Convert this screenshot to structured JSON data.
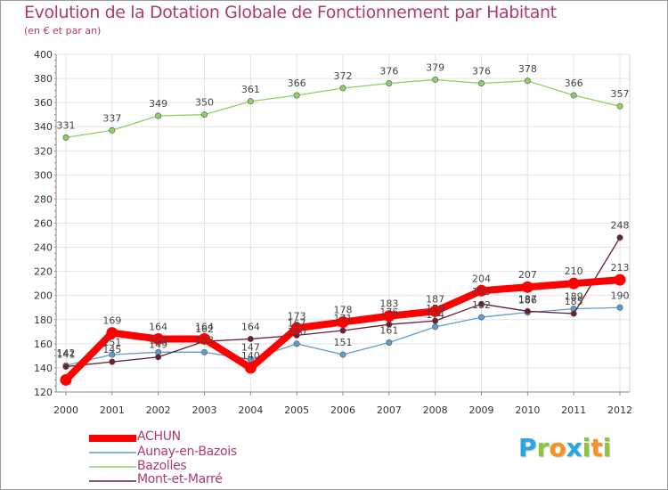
{
  "chart_data": {
    "type": "line",
    "title": "Evolution de la Dotation Globale de Fonctionnement par Habitant",
    "subtitle": "(en € et par an)",
    "xlabel": "",
    "ylabel": "",
    "ylim": [
      120,
      400
    ],
    "yticks": [
      120,
      140,
      160,
      180,
      200,
      220,
      240,
      260,
      280,
      300,
      320,
      340,
      360,
      380,
      400
    ],
    "x": [
      "2000",
      "2001",
      "2002",
      "2003",
      "2004",
      "2005",
      "2006",
      "2007",
      "2008",
      "2009",
      "2010",
      "2011",
      "2012"
    ],
    "grid": true,
    "legend": "bottom-left",
    "series": [
      {
        "name": "Bazolles",
        "color": "#8fcf63",
        "values": [
          331,
          337,
          349,
          350,
          361,
          366,
          372,
          376,
          379,
          376,
          378,
          366,
          357
        ]
      },
      {
        "name": "Aunay-en-Bazois",
        "color": "#5a9ed0",
        "values": [
          142,
          151,
          153,
          153,
          147,
          160,
          151,
          161,
          174,
          182,
          186,
          189,
          190
        ]
      },
      {
        "name": "Mont-et-Marré",
        "color": "#6b1e2e",
        "values": [
          141,
          145,
          149,
          162,
          164,
          167,
          171,
          176,
          179,
          193,
          187,
          185,
          248
        ]
      },
      {
        "name": "ACHUN",
        "color": "#ff0000",
        "values": [
          130,
          169,
          164,
          164,
          140,
          173,
          178,
          183,
          187,
          204,
          207,
          210,
          213
        ]
      }
    ],
    "labels": [
      {
        "text": "331",
        "x": "2000",
        "y": 331
      },
      {
        "text": "337",
        "x": "2001",
        "y": 337
      },
      {
        "text": "349",
        "x": "2002",
        "y": 349
      },
      {
        "text": "350",
        "x": "2003",
        "y": 350
      },
      {
        "text": "361",
        "x": "2004",
        "y": 361
      },
      {
        "text": "366",
        "x": "2005",
        "y": 366
      },
      {
        "text": "372",
        "x": "2006",
        "y": 372
      },
      {
        "text": "376",
        "x": "2007",
        "y": 376
      },
      {
        "text": "379",
        "x": "2008",
        "y": 379
      },
      {
        "text": "376",
        "x": "2009",
        "y": 376
      },
      {
        "text": "378",
        "x": "2010",
        "y": 378
      },
      {
        "text": "366",
        "x": "2011",
        "y": 366
      },
      {
        "text": "357",
        "x": "2012",
        "y": 357
      },
      {
        "text": "142",
        "x": "2000",
        "y": 142
      },
      {
        "text": "141",
        "x": "2000",
        "y": 141
      },
      {
        "text": "169",
        "x": "2001",
        "y": 169
      },
      {
        "text": "151",
        "x": "2001",
        "y": 151
      },
      {
        "text": "145",
        "x": "2001",
        "y": 145
      },
      {
        "text": "164",
        "x": "2002",
        "y": 164
      },
      {
        "text": "153",
        "x": "2002",
        "y": 153
      },
      {
        "text": "149",
        "x": "2002",
        "y": 149
      },
      {
        "text": "164",
        "x": "2003",
        "y": 164
      },
      {
        "text": "162",
        "x": "2003",
        "y": 162
      },
      {
        "text": "153",
        "x": "2003",
        "y": 153
      },
      {
        "text": "164",
        "x": "2004",
        "y": 164
      },
      {
        "text": "147",
        "x": "2004",
        "y": 147
      },
      {
        "text": "140",
        "x": "2004",
        "y": 140
      },
      {
        "text": "173",
        "x": "2005",
        "y": 173
      },
      {
        "text": "167",
        "x": "2005",
        "y": 167
      },
      {
        "text": "160",
        "x": "2005",
        "y": 160
      },
      {
        "text": "178",
        "x": "2006",
        "y": 178
      },
      {
        "text": "171",
        "x": "2006",
        "y": 171
      },
      {
        "text": "151",
        "x": "2006",
        "y": 151
      },
      {
        "text": "183",
        "x": "2007",
        "y": 183
      },
      {
        "text": "176",
        "x": "2007",
        "y": 176
      },
      {
        "text": "161",
        "x": "2007",
        "y": 161
      },
      {
        "text": "187",
        "x": "2008",
        "y": 187
      },
      {
        "text": "179",
        "x": "2008",
        "y": 179
      },
      {
        "text": "174",
        "x": "2008",
        "y": 174
      },
      {
        "text": "204",
        "x": "2009",
        "y": 204
      },
      {
        "text": "193",
        "x": "2009",
        "y": 193
      },
      {
        "text": "182",
        "x": "2009",
        "y": 182
      },
      {
        "text": "207",
        "x": "2010",
        "y": 207
      },
      {
        "text": "187",
        "x": "2010",
        "y": 187
      },
      {
        "text": "186",
        "x": "2010",
        "y": 186
      },
      {
        "text": "210",
        "x": "2011",
        "y": 210
      },
      {
        "text": "189",
        "x": "2011",
        "y": 189
      },
      {
        "text": "185",
        "x": "2011",
        "y": 185
      },
      {
        "text": "248",
        "x": "2012",
        "y": 248
      },
      {
        "text": "213",
        "x": "2012",
        "y": 213
      },
      {
        "text": "190",
        "x": "2012",
        "y": 190
      }
    ]
  },
  "legend": {
    "items": [
      {
        "label": "ACHUN",
        "color": "#ff0000"
      },
      {
        "label": "Aunay-en-Bazois",
        "color": "#5a9ed0"
      },
      {
        "label": "Bazolles",
        "color": "#8fcf63"
      },
      {
        "label": "Mont-et-Marré",
        "color": "#6b1e2e"
      }
    ]
  },
  "brand": {
    "logo_text": "Proxiti",
    "letters": [
      {
        "ch": "P",
        "color": "#2aa6e0"
      },
      {
        "ch": "r",
        "color": "#8cc63f"
      },
      {
        "ch": "o",
        "color": "#f7931e"
      },
      {
        "ch": "x",
        "color": "#2aa6e0"
      },
      {
        "ch": "i",
        "color": "#8cc63f"
      },
      {
        "ch": "t",
        "color": "#f7931e"
      },
      {
        "ch": "i",
        "color": "#8cc63f"
      }
    ]
  }
}
